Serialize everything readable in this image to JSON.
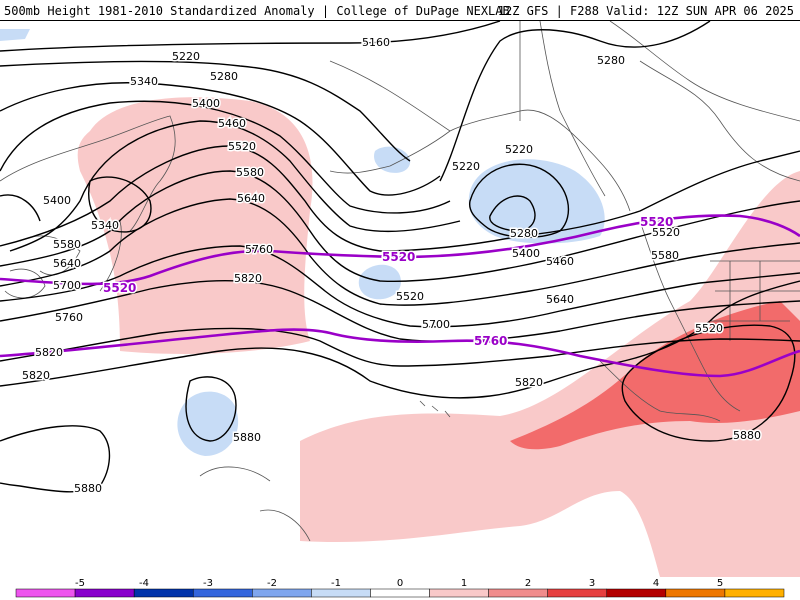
{
  "header": {
    "title_left": "500mb Height 1981-2010 Standardized Anomaly | College of DuPage NEXLAB",
    "title_right": "12Z GFS | F288 Valid: 12Z SUN APR 06 2025"
  },
  "colors": {
    "anomaly_pos1": "#f9c9c9",
    "anomaly_pos2": "#f26b6b",
    "anomaly_neg1": "#c7dcf6",
    "contour": "#000000",
    "climo_contour": "#9a00c8",
    "coastline": "#555555"
  },
  "height_labels": [
    "5160",
    "5220",
    "5280",
    "5280",
    "5340",
    "5400",
    "5460",
    "5520",
    "5580",
    "5640",
    "5400",
    "5340",
    "5220",
    "5220",
    "5400",
    "5460",
    "5520",
    "5580",
    "5640",
    "5700",
    "5760",
    "5820",
    "5820",
    "5820",
    "5880",
    "5880",
    "5880",
    "5520",
    "5580",
    "5640",
    "5700",
    "5760",
    "5820",
    "5280",
    "5520"
  ],
  "climo_labels": [
    "5520",
    "5520",
    "5520",
    "5760"
  ],
  "colorbar": {
    "ticks": [
      "-5",
      "-4",
      "-3",
      "-2",
      "-1",
      "0",
      "1",
      "2",
      "3",
      "4",
      "5"
    ],
    "colors": [
      "#ee55ee",
      "#8800cc",
      "#0033aa",
      "#3366dd",
      "#7fa6ee",
      "#c7dcf6",
      "#ffffff",
      "#f9c9c9",
      "#f08c8c",
      "#e64040",
      "#b40000",
      "#ee7700",
      "#ffb000"
    ]
  }
}
